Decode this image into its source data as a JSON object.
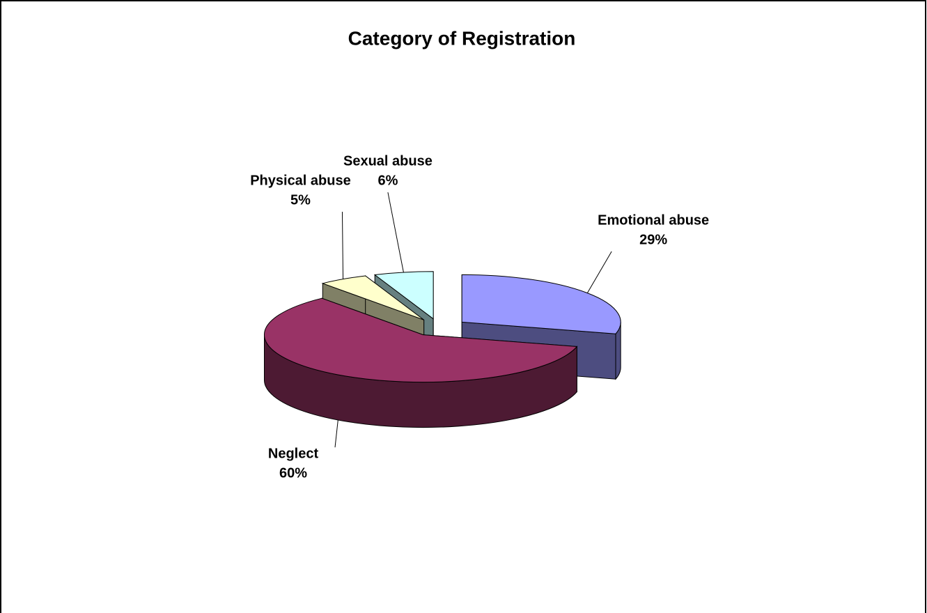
{
  "chart_data": {
    "type": "pie",
    "title": "Category of Registration",
    "categories": [
      "Emotional abuse",
      "Neglect",
      "Physical abuse",
      "Sexual abuse"
    ],
    "values": [
      29,
      60,
      5,
      6
    ],
    "value_labels": [
      "29%",
      "60%",
      "5%",
      "6%"
    ],
    "colors": [
      "#9999ff",
      "#993366",
      "#ffffcc",
      "#ccffff"
    ]
  }
}
